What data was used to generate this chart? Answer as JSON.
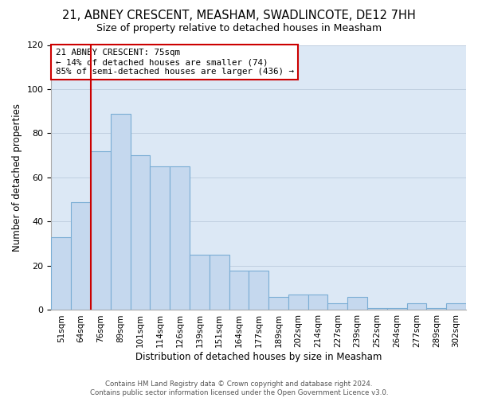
{
  "title": "21, ABNEY CRESCENT, MEASHAM, SWADLINCOTE, DE12 7HH",
  "subtitle": "Size of property relative to detached houses in Measham",
  "xlabel": "Distribution of detached houses by size in Measham",
  "ylabel": "Number of detached properties",
  "bar_vals": [
    33,
    49,
    72,
    89,
    70,
    65,
    65,
    25,
    25,
    18,
    18,
    6,
    7,
    7,
    3,
    6,
    1,
    1,
    3,
    1,
    3
  ],
  "categories": [
    "51sqm",
    "64sqm",
    "76sqm",
    "89sqm",
    "101sqm",
    "114sqm",
    "126sqm",
    "139sqm",
    "151sqm",
    "164sqm",
    "177sqm",
    "189sqm",
    "202sqm",
    "214sqm",
    "227sqm",
    "239sqm",
    "252sqm",
    "264sqm",
    "277sqm",
    "289sqm",
    "302sqm"
  ],
  "bar_color": "#c5d8ee",
  "bar_edge_color": "#7aadd4",
  "vline_color": "#cc0000",
  "annotation_line1": "21 ABNEY CRESCENT: 75sqm",
  "annotation_line2": "← 14% of detached houses are smaller (74)",
  "annotation_line3": "85% of semi-detached houses are larger (436) →",
  "footer_line1": "Contains HM Land Registry data © Crown copyright and database right 2024.",
  "footer_line2": "Contains public sector information licensed under the Open Government Licence v3.0.",
  "bg_color": "#ffffff",
  "axes_bg": "#dce8f5",
  "grid_color": "#c0cfe0",
  "ylim_max": 120,
  "yticks": [
    0,
    20,
    40,
    60,
    80,
    100,
    120
  ]
}
